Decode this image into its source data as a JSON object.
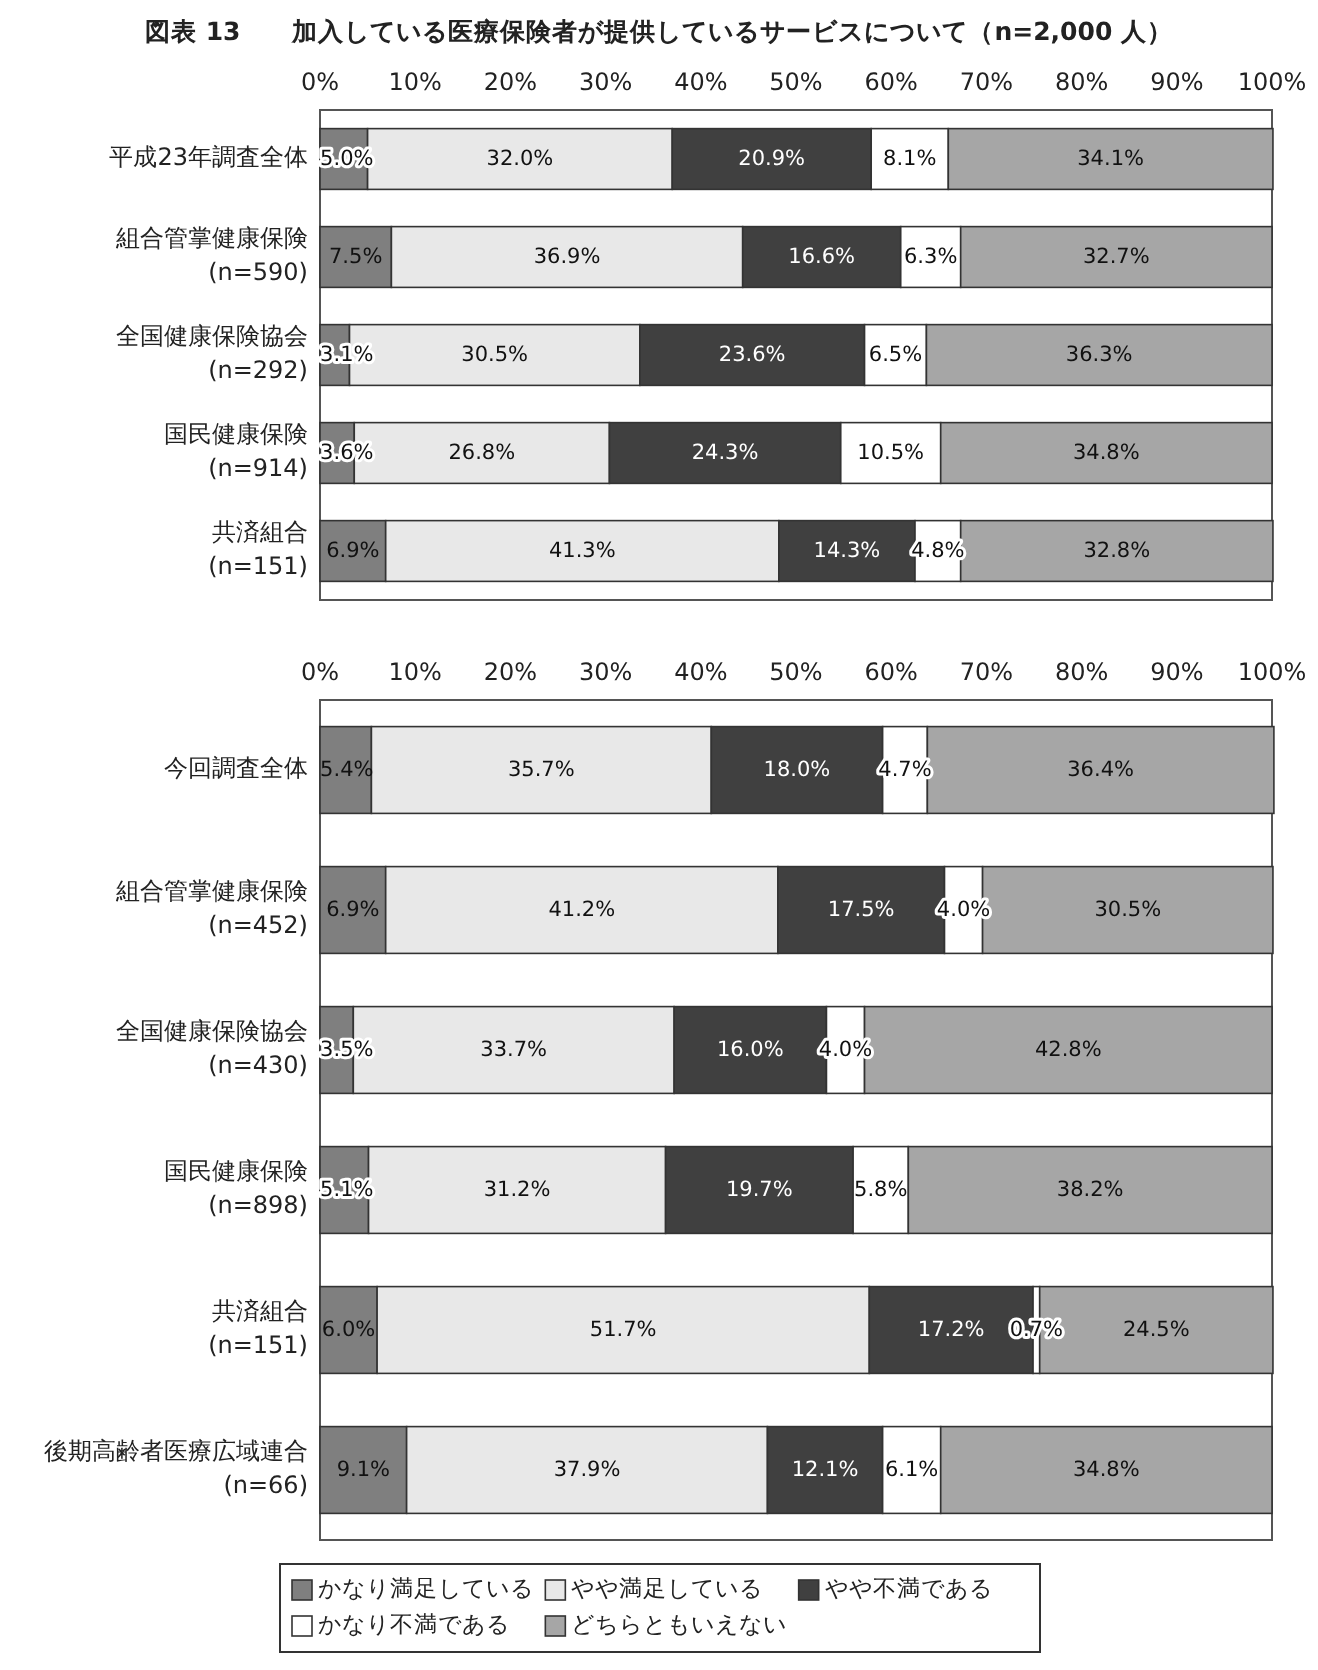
{
  "chart_data": [
    {
      "type": "bar",
      "orientation": "horizontal",
      "stacked": true,
      "title": "図表 13　　加入している医療保険者が提供しているサービスについて（n=2,000 人）",
      "categories": [
        "平成23年調査全体",
        "組合管掌健康保険\n(n=590)",
        "全国健康保険協会\n(n=292)",
        "国民健康保険\n(n=914)",
        "共済組合\n(n=151)"
      ],
      "xlim": [
        0,
        100
      ],
      "xticks": [
        {
          "value": 0,
          "label": "0%"
        },
        {
          "value": 10,
          "label": "10%"
        },
        {
          "value": 20,
          "label": "20%"
        },
        {
          "value": 30,
          "label": "30%"
        },
        {
          "value": 40,
          "label": "40%"
        },
        {
          "value": 50,
          "label": "50%"
        },
        {
          "value": 60,
          "label": "60%"
        },
        {
          "value": 70,
          "label": "70%"
        },
        {
          "value": 80,
          "label": "80%"
        },
        {
          "value": 90,
          "label": "90%"
        },
        {
          "value": 100,
          "label": "100%"
        }
      ],
      "series": [
        {
          "color": "#7f7f7f",
          "values": [
            5.0,
            7.5,
            3.1,
            3.6,
            6.9
          ],
          "value_labels": [
            "5.0%",
            "7.5%",
            "3.1%",
            "3.6%",
            "6.9%"
          ]
        },
        {
          "color": "#e8e8e8",
          "values": [
            32.0,
            36.9,
            30.5,
            26.8,
            41.3
          ],
          "value_labels": [
            "32.0%",
            "36.9%",
            "30.5%",
            "26.8%",
            "41.3%"
          ]
        },
        {
          "color": "#404040",
          "values": [
            20.9,
            16.6,
            23.6,
            24.3,
            14.3
          ],
          "value_labels": [
            "20.9%",
            "16.6%",
            "23.6%",
            "24.3%",
            "14.3%"
          ]
        },
        {
          "color": "#ffffff",
          "values": [
            8.1,
            6.3,
            6.5,
            10.5,
            4.8
          ],
          "value_labels": [
            "8.1%",
            "6.3%",
            "6.5%",
            "10.5%",
            "4.8%"
          ]
        },
        {
          "color": "#a6a6a6",
          "values": [
            34.1,
            32.7,
            36.3,
            34.8,
            32.8
          ],
          "value_labels": [
            "34.1%",
            "32.7%",
            "36.3%",
            "34.8%",
            "32.8%"
          ]
        }
      ]
    },
    {
      "type": "bar",
      "orientation": "horizontal",
      "stacked": true,
      "legend": "bottom",
      "categories": [
        "今回調査全体",
        "組合管掌健康保険\n(n=452)",
        "全国健康保険協会\n(n=430)",
        "国民健康保険\n(n=898)",
        "共済組合\n(n=151)",
        "後期高齢者医療広域連合\n(n=66)"
      ],
      "xlim": [
        0,
        100
      ],
      "xticks": [
        {
          "value": 0,
          "label": "0%"
        },
        {
          "value": 10,
          "label": "10%"
        },
        {
          "value": 20,
          "label": "20%"
        },
        {
          "value": 30,
          "label": "30%"
        },
        {
          "value": 40,
          "label": "40%"
        },
        {
          "value": 50,
          "label": "50%"
        },
        {
          "value": 60,
          "label": "60%"
        },
        {
          "value": 70,
          "label": "70%"
        },
        {
          "value": 80,
          "label": "80%"
        },
        {
          "value": 90,
          "label": "90%"
        },
        {
          "value": 100,
          "label": "100%"
        }
      ],
      "series": [
        {
          "name": "かなり満足している",
          "color": "#7f7f7f",
          "values": [
            5.4,
            6.9,
            3.5,
            5.1,
            6.0,
            9.1
          ],
          "value_labels": [
            "5.4%",
            "6.9%",
            "3.5%",
            "5.1%",
            "6.0%",
            "9.1%"
          ]
        },
        {
          "name": "やや満足している",
          "color": "#e8e8e8",
          "values": [
            35.7,
            41.2,
            33.7,
            31.2,
            51.7,
            37.9
          ],
          "value_labels": [
            "35.7%",
            "41.2%",
            "33.7%",
            "31.2%",
            "51.7%",
            "37.9%"
          ]
        },
        {
          "name": "やや不満である",
          "color": "#404040",
          "values": [
            18.0,
            17.5,
            16.0,
            19.7,
            17.2,
            12.1
          ],
          "value_labels": [
            "18.0%",
            "17.5%",
            "16.0%",
            "19.7%",
            "17.2%",
            "12.1%"
          ]
        },
        {
          "name": "かなり不満である",
          "color": "#ffffff",
          "values": [
            4.7,
            4.0,
            4.0,
            5.8,
            0.7,
            6.1
          ],
          "value_labels": [
            "4.7%",
            "4.0%",
            "4.0%",
            "5.8%",
            "0.7%",
            "6.1%"
          ]
        },
        {
          "name": "どちらともいえない",
          "color": "#a6a6a6",
          "values": [
            36.4,
            30.5,
            42.8,
            38.2,
            24.5,
            34.8
          ],
          "value_labels": [
            "36.4%",
            "30.5%",
            "42.8%",
            "38.2%",
            "24.5%",
            "34.8%"
          ]
        }
      ]
    }
  ]
}
